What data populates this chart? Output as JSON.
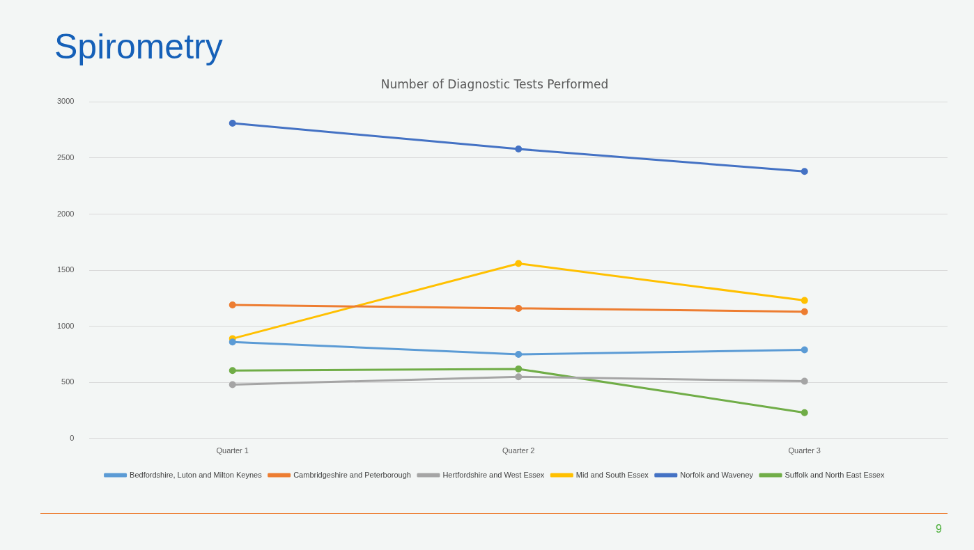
{
  "chart_data": {
    "type": "line",
    "title": "Spirometry",
    "subtitle": "Number of Diagnostic Tests Performed",
    "categories": [
      "Quarter 1",
      "Quarter 2",
      "Quarter 3"
    ],
    "series": [
      {
        "name": "Bedfordshire, Luton and Milton Keynes",
        "color": "#5b9bd5",
        "values": [
          860,
          750,
          790
        ]
      },
      {
        "name": "Cambridgeshire and Peterborough",
        "color": "#ed7d31",
        "values": [
          1190,
          1160,
          1130
        ]
      },
      {
        "name": "Hertfordshire and West Essex",
        "color": "#a5a5a5",
        "values": [
          480,
          550,
          510
        ]
      },
      {
        "name": "Mid and South Essex",
        "color": "#ffc000",
        "values": [
          890,
          1560,
          1230
        ]
      },
      {
        "name": "Norfolk and Waveney",
        "color": "#4472c4",
        "values": [
          2810,
          2580,
          2380
        ]
      },
      {
        "name": "Suffolk and North East Essex",
        "color": "#70ad47",
        "values": [
          605,
          620,
          230
        ]
      }
    ],
    "ylim": [
      0,
      3000
    ],
    "yticks": [
      0,
      500,
      1000,
      1500,
      2000,
      2500,
      3000
    ],
    "grid": "y",
    "legend": "bottom",
    "marker": "circle",
    "line_style": "solid",
    "annotations": [
      "9"
    ]
  }
}
